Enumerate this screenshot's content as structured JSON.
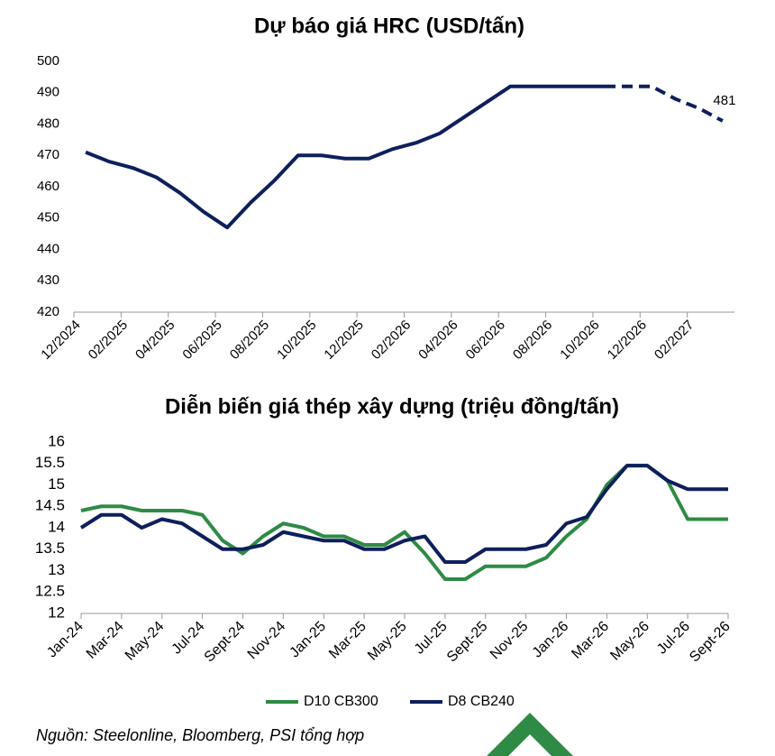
{
  "chart_data": [
    {
      "type": "line",
      "title": "Dự báo giá HRC (USD/tấn)",
      "categories": [
        "12/2024",
        null,
        "02/2025",
        null,
        "04/2025",
        null,
        "06/2025",
        null,
        "08/2025",
        null,
        "10/2025",
        null,
        "12/2025",
        null,
        "02/2026",
        null,
        "04/2026",
        null,
        "06/2026",
        null,
        "08/2026",
        null,
        "10/2026",
        null,
        "12/2026",
        null,
        "02/2027",
        null
      ],
      "series": [
        {
          "color": "#0d1f5c",
          "dashed": false,
          "values": [
            471,
            468,
            466,
            463,
            458,
            452,
            447,
            455,
            462,
            470,
            470,
            469,
            469,
            472,
            474,
            477,
            482,
            487,
            492,
            492,
            492,
            492,
            492,
            null,
            null,
            null,
            null,
            null
          ]
        },
        {
          "color": "#0d1f5c",
          "dashed": true,
          "label_last": true,
          "values": [
            null,
            null,
            null,
            null,
            null,
            null,
            null,
            null,
            null,
            null,
            null,
            null,
            null,
            null,
            null,
            null,
            null,
            null,
            null,
            null,
            null,
            null,
            492,
            492,
            492,
            488,
            485,
            481
          ]
        }
      ],
      "ylim": [
        420,
        500
      ],
      "yticks": [
        420,
        430,
        440,
        450,
        460,
        470,
        480,
        490,
        500
      ],
      "grid": false
    },
    {
      "type": "line",
      "title": "Diễn biến giá thép xây dựng (triệu đồng/tấn)",
      "categories": [
        "Jan-24",
        null,
        "Mar-24",
        null,
        "May-24",
        null,
        "Jul-24",
        null,
        "Sept-24",
        null,
        "Nov-24",
        null,
        "Jan-25",
        null,
        "Mar-25",
        null,
        "May-25",
        null,
        "Jul-25",
        null,
        "Sept-25",
        null,
        "Nov-25",
        null,
        "Jan-26",
        null,
        "Mar-26",
        null,
        "May-26",
        null,
        "Jul-26",
        null,
        "Sept-26"
      ],
      "series": [
        {
          "name": "D10 CB300",
          "color": "#2e8b45",
          "values": [
            14.4,
            14.5,
            14.5,
            14.4,
            14.4,
            14.4,
            14.3,
            13.7,
            13.4,
            13.8,
            14.1,
            14.0,
            13.8,
            13.8,
            13.6,
            13.6,
            13.9,
            13.4,
            12.8,
            12.8,
            13.1,
            13.1,
            13.1,
            13.3,
            13.8,
            14.2,
            15.0,
            15.45,
            15.45,
            15.1,
            14.2,
            14.2,
            14.2
          ]
        },
        {
          "name": "D8 CB240",
          "color": "#0d1f5c",
          "values": [
            14.0,
            14.3,
            14.3,
            14.0,
            14.2,
            14.1,
            13.8,
            13.5,
            13.5,
            13.6,
            13.9,
            13.8,
            13.7,
            13.7,
            13.5,
            13.5,
            13.7,
            13.8,
            13.2,
            13.2,
            13.5,
            13.5,
            13.5,
            13.6,
            14.1,
            14.25,
            14.9,
            15.45,
            15.45,
            15.1,
            14.9,
            14.9,
            14.9
          ]
        }
      ],
      "ylim": [
        12,
        16
      ],
      "yticks": [
        12,
        12.5,
        13,
        13.5,
        14,
        14.5,
        15,
        15.5,
        16
      ],
      "grid": false,
      "legend": "bottom"
    }
  ],
  "source": "Nguồn: Steelonline, Bloomberg, PSI tổng hợp"
}
